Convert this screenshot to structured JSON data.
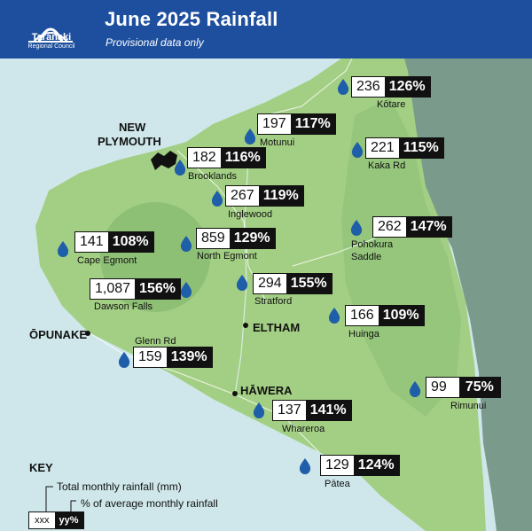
{
  "header": {
    "title": "June 2025 Rainfall",
    "subtitle": "Provisional data only",
    "logo_name": "Taranaki",
    "logo_sub": "Regional Council"
  },
  "towns": [
    {
      "id": "new-plymouth",
      "name_line1": "NEW",
      "name_line2": "PLYMOUTH"
    },
    {
      "id": "opunake",
      "name": "ŌPUNAKE"
    },
    {
      "id": "eltham",
      "name": "ELTHAM"
    },
    {
      "id": "hawera",
      "name": "HĀWERA"
    }
  ],
  "stations": [
    {
      "id": "kotare",
      "name": "Kōtare",
      "total": "236",
      "percent": "126%"
    },
    {
      "id": "motunui",
      "name": "Motunui",
      "total": "197",
      "percent": "117%"
    },
    {
      "id": "kaka-rd",
      "name": "Kaka Rd",
      "total": "221",
      "percent": "115%"
    },
    {
      "id": "brooklands",
      "name": "Brooklands",
      "total": "182",
      "percent": "116%"
    },
    {
      "id": "inglewood",
      "name": "Inglewood",
      "total": "267",
      "percent": "119%"
    },
    {
      "id": "pohokura-saddle",
      "name_line1": "Pohokura",
      "name_line2": "Saddle",
      "total": "262",
      "percent": "147%"
    },
    {
      "id": "cape-egmont",
      "name": "Cape Egmont",
      "total": "141",
      "percent": "108%"
    },
    {
      "id": "north-egmont",
      "name": "North Egmont",
      "total": "859",
      "percent": "129%"
    },
    {
      "id": "dawson-falls",
      "name": "Dawson Falls",
      "total": "1,087",
      "percent": "156%"
    },
    {
      "id": "stratford",
      "name": "Stratford",
      "total": "294",
      "percent": "155%"
    },
    {
      "id": "huinga",
      "name": "Huinga",
      "total": "166",
      "percent": "109%"
    },
    {
      "id": "glenn-rd",
      "name": "Glenn Rd",
      "total": "159",
      "percent": "139%"
    },
    {
      "id": "rimunui",
      "name": "Rimunui",
      "total": "99",
      "percent": "75%"
    },
    {
      "id": "whareroa",
      "name": "Whareroa",
      "total": "137",
      "percent": "141%"
    },
    {
      "id": "patea",
      "name": "Pātea",
      "total": "129",
      "percent": "124%"
    }
  ],
  "key": {
    "title": "KEY",
    "total_label": "Total monthly rainfall (mm)",
    "percent_label": "% of average monthly rainfall",
    "sample_total": "xxx",
    "sample_percent": "yy%"
  },
  "colors": {
    "header": "#1d4f9e",
    "sea": "#cfe7ea",
    "land": "#a3cf84",
    "land_dark": "#8dbf75",
    "east_sea": "#7a9a8b",
    "rain_drop": "#1f5ea8"
  }
}
